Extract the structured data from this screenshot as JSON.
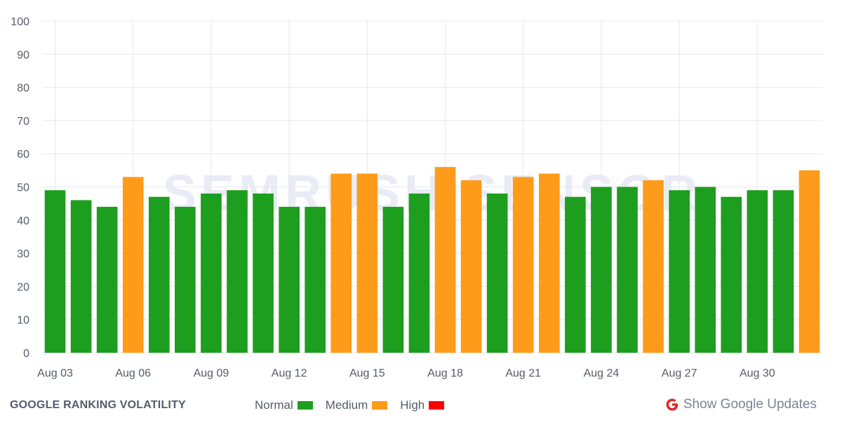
{
  "chart_data": {
    "type": "bar",
    "title": "",
    "xlabel": "",
    "ylabel": "",
    "ylim": [
      0,
      100
    ],
    "yticks": [
      "0",
      "10",
      "20",
      "30",
      "40",
      "50",
      "60",
      "70",
      "80",
      "90",
      "100"
    ],
    "grid": true,
    "categories": [
      "Aug 03",
      "Aug 04",
      "Aug 05",
      "Aug 06",
      "Aug 07",
      "Aug 08",
      "Aug 09",
      "Aug 10",
      "Aug 11",
      "Aug 12",
      "Aug 13",
      "Aug 14",
      "Aug 15",
      "Aug 16",
      "Aug 17",
      "Aug 18",
      "Aug 19",
      "Aug 20",
      "Aug 21",
      "Aug 22",
      "Aug 23",
      "Aug 24",
      "Aug 25",
      "Aug 26",
      "Aug 27",
      "Aug 28",
      "Aug 29",
      "Aug 30",
      "Aug 31",
      "Sep 01"
    ],
    "xtick_labels": [
      "Aug 03",
      "Aug 06",
      "Aug 09",
      "Aug 12",
      "Aug 15",
      "Aug 18",
      "Aug 21",
      "Aug 24",
      "Aug 27",
      "Aug 30"
    ],
    "values": [
      49,
      46,
      44,
      53,
      47,
      44,
      48,
      49,
      48,
      44,
      44,
      54,
      54,
      44,
      48,
      56,
      52,
      48,
      53,
      54,
      47,
      50,
      50,
      52,
      49,
      50,
      47,
      49,
      49,
      55
    ],
    "levels": [
      "Normal",
      "Normal",
      "Normal",
      "Medium",
      "Normal",
      "Normal",
      "Normal",
      "Normal",
      "Normal",
      "Normal",
      "Normal",
      "Medium",
      "Medium",
      "Normal",
      "Normal",
      "Medium",
      "Medium",
      "Normal",
      "Medium",
      "Medium",
      "Normal",
      "Normal",
      "Normal",
      "Medium",
      "Normal",
      "Normal",
      "Normal",
      "Normal",
      "Normal",
      "Medium"
    ],
    "legend": [
      {
        "name": "Normal",
        "color": "#1e9e1e"
      },
      {
        "name": "Medium",
        "color": "#ff9b1a"
      },
      {
        "name": "High",
        "color": "#ff0000"
      }
    ],
    "legend_position": "bottom"
  },
  "watermark": "SEMRUSH SENSOR",
  "footer": {
    "title": "GOOGLE RANKING VOLATILITY",
    "show_updates_label": "Show Google Updates",
    "google_icon_color": "#e8251f"
  }
}
